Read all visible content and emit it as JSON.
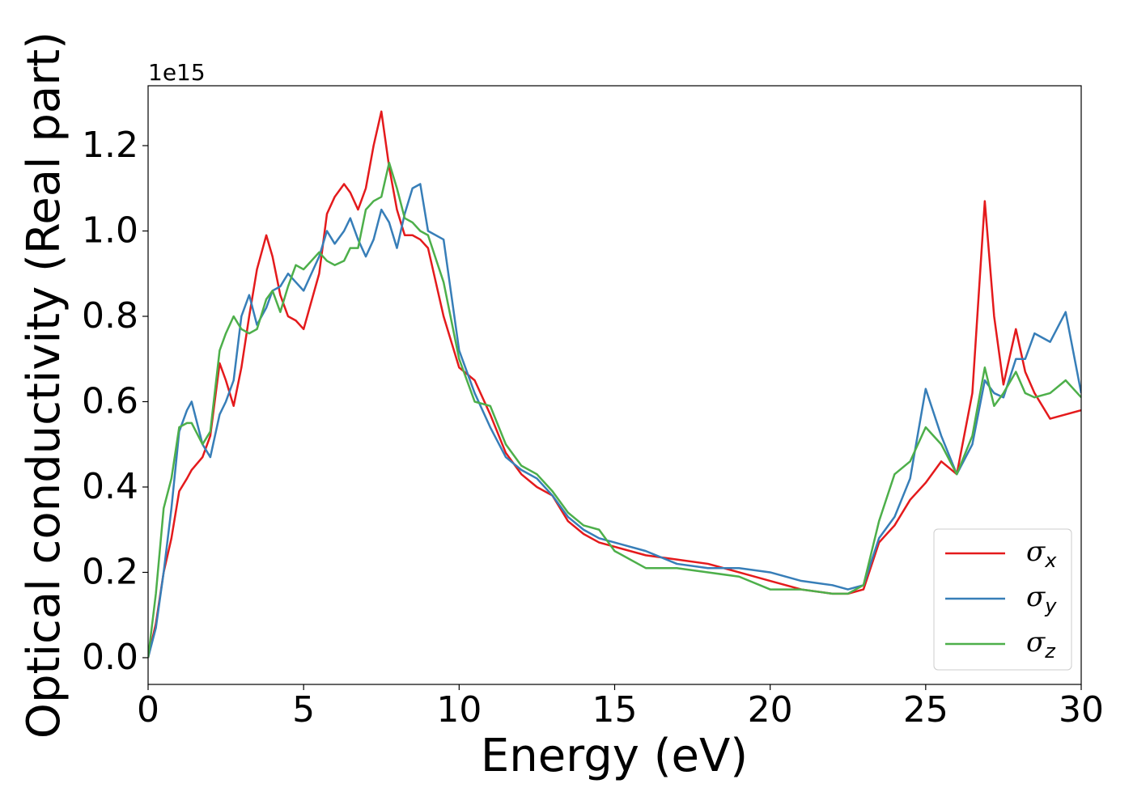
{
  "chart_data": {
    "type": "line",
    "xlabel": "Energy (eV)",
    "ylabel": "Optical conductivity (Real part)",
    "y_offset": "1e15",
    "x": [
      0,
      0.25,
      0.5,
      0.75,
      1,
      1.25,
      1.4,
      1.75,
      2,
      2.3,
      2.5,
      2.75,
      3,
      3.25,
      3.5,
      3.8,
      4,
      4.25,
      4.5,
      4.75,
      5,
      5.5,
      5.75,
      6,
      6.3,
      6.5,
      6.75,
      7,
      7.25,
      7.5,
      7.75,
      8,
      8.25,
      8.5,
      8.75,
      9,
      9.5,
      10,
      10.5,
      11,
      11.5,
      12,
      12.5,
      13,
      13.5,
      14,
      14.5,
      15,
      16,
      17,
      18,
      19,
      20,
      21,
      22,
      22.5,
      23,
      23.5,
      24,
      24.5,
      25,
      25.5,
      26,
      26.5,
      26.9,
      27.2,
      27.5,
      27.9,
      28.2,
      28.5,
      29,
      29.5,
      30
    ],
    "series": [
      {
        "name": "σx",
        "color": "#e41a1c",
        "values": [
          0,
          0.08,
          0.2,
          0.28,
          0.39,
          0.42,
          0.44,
          0.47,
          0.52,
          0.69,
          0.65,
          0.59,
          0.68,
          0.8,
          0.91,
          0.99,
          0.94,
          0.85,
          0.8,
          0.79,
          0.77,
          0.9,
          1.04,
          1.08,
          1.11,
          1.09,
          1.05,
          1.1,
          1.2,
          1.28,
          1.15,
          1.05,
          0.99,
          0.99,
          0.98,
          0.96,
          0.8,
          0.68,
          0.65,
          0.57,
          0.48,
          0.43,
          0.4,
          0.38,
          0.32,
          0.29,
          0.27,
          0.26,
          0.24,
          0.23,
          0.22,
          0.2,
          0.18,
          0.16,
          0.15,
          0.15,
          0.16,
          0.27,
          0.31,
          0.37,
          0.41,
          0.46,
          0.43,
          0.62,
          1.07,
          0.8,
          0.64,
          0.77,
          0.67,
          0.62,
          0.56,
          0.57,
          0.58
        ]
      },
      {
        "name": "σy",
        "color": "#377eb8",
        "values": [
          0,
          0.07,
          0.2,
          0.35,
          0.53,
          0.58,
          0.6,
          0.5,
          0.47,
          0.57,
          0.6,
          0.65,
          0.8,
          0.85,
          0.78,
          0.82,
          0.86,
          0.87,
          0.9,
          0.88,
          0.86,
          0.94,
          1.0,
          0.97,
          1.0,
          1.03,
          0.98,
          0.94,
          0.98,
          1.05,
          1.02,
          0.96,
          1.04,
          1.1,
          1.11,
          1.0,
          0.98,
          0.72,
          0.62,
          0.54,
          0.47,
          0.44,
          0.42,
          0.38,
          0.33,
          0.3,
          0.28,
          0.27,
          0.25,
          0.22,
          0.21,
          0.21,
          0.2,
          0.18,
          0.17,
          0.16,
          0.17,
          0.28,
          0.33,
          0.42,
          0.63,
          0.52,
          0.43,
          0.5,
          0.65,
          0.62,
          0.61,
          0.7,
          0.7,
          0.76,
          0.74,
          0.81,
          0.62
        ]
      },
      {
        "name": "σz",
        "color": "#4daf4a",
        "values": [
          0,
          0.15,
          0.35,
          0.42,
          0.54,
          0.55,
          0.55,
          0.5,
          0.53,
          0.72,
          0.76,
          0.8,
          0.77,
          0.76,
          0.77,
          0.84,
          0.86,
          0.81,
          0.87,
          0.92,
          0.91,
          0.95,
          0.93,
          0.92,
          0.93,
          0.96,
          0.96,
          1.05,
          1.07,
          1.08,
          1.16,
          1.1,
          1.03,
          1.02,
          1.0,
          0.99,
          0.88,
          0.7,
          0.6,
          0.59,
          0.5,
          0.45,
          0.43,
          0.39,
          0.34,
          0.31,
          0.3,
          0.25,
          0.21,
          0.21,
          0.2,
          0.19,
          0.16,
          0.16,
          0.15,
          0.15,
          0.17,
          0.32,
          0.43,
          0.46,
          0.54,
          0.5,
          0.43,
          0.52,
          0.68,
          0.59,
          0.62,
          0.67,
          0.62,
          0.61,
          0.62,
          0.65,
          0.61
        ]
      }
    ],
    "xlim": [
      0,
      30
    ],
    "xticks": [
      0,
      5,
      10,
      15,
      20,
      25,
      30
    ],
    "ylim": [
      -0.0626,
      1.3403
    ],
    "yticks": [
      {
        "value": 0,
        "label": "0.0"
      },
      {
        "value": 0.2,
        "label": "0.2"
      },
      {
        "value": 0.4,
        "label": "0.4"
      },
      {
        "value": 0.6,
        "label": "0.6"
      },
      {
        "value": 0.8,
        "label": "0.8"
      },
      {
        "value": 1.0,
        "label": "1.0"
      },
      {
        "value": 1.2,
        "label": "1.2"
      }
    ],
    "legend": "lower right",
    "grid": false
  }
}
